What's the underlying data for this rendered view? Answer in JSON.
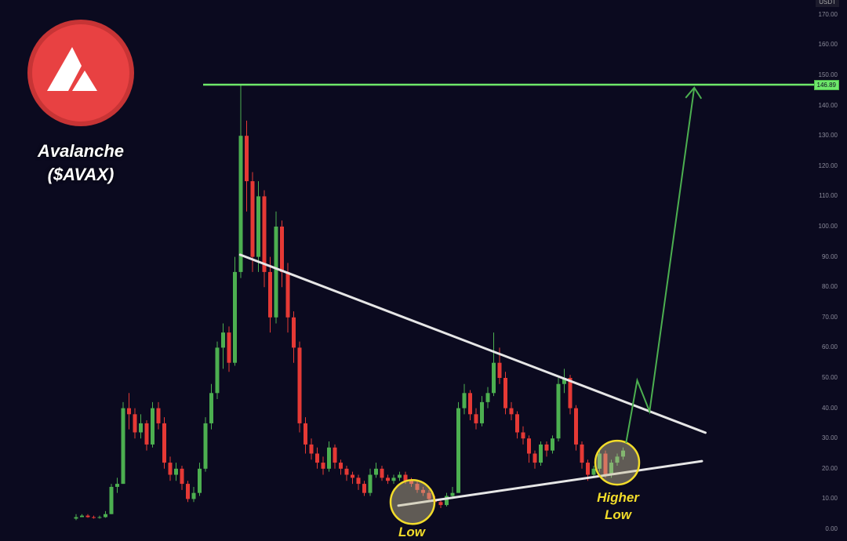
{
  "brand": {
    "name": "Avalanche",
    "ticker": "($AVAX)",
    "logo_color": "#e84142",
    "logo_icon": "avalanche-logo"
  },
  "chart_data": {
    "type": "candlestick",
    "currency_label": "USDT",
    "ylim": [
      0,
      170
    ],
    "yticks": [
      "0.00",
      "10.00",
      "20.00",
      "30.00",
      "40.00",
      "50.00",
      "60.00",
      "70.00",
      "80.00",
      "90.00",
      "100.00",
      "110.00",
      "120.00",
      "130.00",
      "140.00",
      "150.00",
      "160.00",
      "170.00"
    ],
    "up_color": "#4caf50",
    "down_color": "#e53935",
    "ohlc": [
      [
        3.5,
        5,
        3,
        4
      ],
      [
        4,
        5,
        4,
        4.5
      ],
      [
        4.5,
        5,
        3.8,
        4
      ],
      [
        4,
        4.5,
        3.5,
        3.8
      ],
      [
        3.8,
        4.5,
        3.5,
        4
      ],
      [
        4,
        6,
        3.8,
        5
      ],
      [
        5,
        15,
        5,
        14
      ],
      [
        14,
        17,
        12,
        15
      ],
      [
        15,
        42,
        15,
        40
      ],
      [
        40,
        45,
        33,
        38
      ],
      [
        38,
        40,
        30,
        32
      ],
      [
        32,
        38,
        30,
        35
      ],
      [
        35,
        36,
        26,
        28
      ],
      [
        28,
        42,
        27,
        40
      ],
      [
        40,
        42,
        33,
        35
      ],
      [
        35,
        37,
        20,
        22
      ],
      [
        22,
        24,
        16,
        18
      ],
      [
        18,
        22,
        16,
        20
      ],
      [
        20,
        21,
        13,
        15
      ],
      [
        15,
        16,
        9,
        10
      ],
      [
        10,
        14,
        9,
        12
      ],
      [
        12,
        22,
        11,
        20
      ],
      [
        20,
        37,
        19,
        35
      ],
      [
        35,
        48,
        33,
        45
      ],
      [
        45,
        62,
        43,
        60
      ],
      [
        60,
        68,
        53,
        65
      ],
      [
        65,
        67,
        52,
        55
      ],
      [
        55,
        90,
        54,
        85
      ],
      [
        85,
        146.89,
        83,
        130
      ],
      [
        130,
        135,
        105,
        115
      ],
      [
        115,
        118,
        85,
        90
      ],
      [
        90,
        115,
        85,
        110
      ],
      [
        110,
        112,
        80,
        85
      ],
      [
        85,
        90,
        65,
        70
      ],
      [
        70,
        105,
        68,
        100
      ],
      [
        100,
        102,
        80,
        85
      ],
      [
        85,
        88,
        65,
        70
      ],
      [
        70,
        72,
        55,
        60
      ],
      [
        60,
        62,
        32,
        35
      ],
      [
        35,
        37,
        25,
        28
      ],
      [
        28,
        30,
        23,
        25
      ],
      [
        25,
        27,
        20,
        22
      ],
      [
        22,
        24,
        18,
        20
      ],
      [
        20,
        29,
        19,
        27
      ],
      [
        27,
        28,
        20,
        22
      ],
      [
        22,
        23,
        18,
        20
      ],
      [
        20,
        21,
        16,
        18
      ],
      [
        18,
        19,
        15,
        17
      ],
      [
        17,
        18,
        13,
        15
      ],
      [
        15,
        16,
        11,
        12
      ],
      [
        12,
        20,
        11,
        18
      ],
      [
        18,
        22,
        17,
        20
      ],
      [
        20,
        21,
        16,
        17
      ],
      [
        17,
        18,
        15,
        16
      ],
      [
        16,
        18,
        15,
        17
      ],
      [
        17,
        19,
        16,
        18
      ],
      [
        18,
        19,
        15,
        16
      ],
      [
        16,
        17,
        14,
        15
      ],
      [
        15,
        16,
        12,
        13
      ],
      [
        13,
        14,
        11,
        12
      ],
      [
        12,
        13,
        9,
        10
      ],
      [
        10,
        11,
        8,
        9
      ],
      [
        9,
        10,
        7,
        8
      ],
      [
        8,
        12,
        7.5,
        11
      ],
      [
        11,
        14,
        10,
        12
      ],
      [
        12,
        42,
        12,
        40
      ],
      [
        40,
        48,
        38,
        45
      ],
      [
        45,
        46,
        36,
        38
      ],
      [
        38,
        40,
        33,
        35
      ],
      [
        35,
        44,
        34,
        42
      ],
      [
        42,
        47,
        40,
        45
      ],
      [
        45,
        65,
        44,
        55
      ],
      [
        55,
        60,
        48,
        50
      ],
      [
        50,
        52,
        38,
        40
      ],
      [
        40,
        42,
        36,
        38
      ],
      [
        38,
        39,
        30,
        32
      ],
      [
        32,
        34,
        28,
        30
      ],
      [
        30,
        31,
        22,
        25
      ],
      [
        25,
        26,
        20,
        22
      ],
      [
        22,
        29,
        21,
        28
      ],
      [
        28,
        29,
        24,
        26
      ],
      [
        26,
        31,
        25,
        30
      ],
      [
        30,
        50,
        29,
        48
      ],
      [
        48,
        53,
        45,
        50
      ],
      [
        50,
        51,
        38,
        40
      ],
      [
        40,
        41,
        26,
        28
      ],
      [
        28,
        29,
        20,
        22
      ],
      [
        22,
        23,
        16,
        18
      ],
      [
        18,
        21,
        17,
        20
      ],
      [
        20,
        26,
        19,
        25
      ],
      [
        25,
        26,
        17,
        18
      ],
      [
        18,
        23,
        17,
        22
      ],
      [
        22,
        25,
        21,
        24
      ],
      [
        24,
        27,
        23,
        26
      ]
    ],
    "ath_level": {
      "value": 146.89,
      "label": "146.89",
      "color": "#6ee86a",
      "from_index": 21.6
    },
    "resistance_line": {
      "points": [
        [
          27.9,
          90.7
        ],
        [
          107,
          31.9
        ]
      ],
      "color": "#e6e6e6"
    },
    "support_line": {
      "points": [
        [
          54.8,
          7.8
        ],
        [
          106.4,
          22.5
        ]
      ],
      "color": "#e6e6e6"
    },
    "projection_arrow": {
      "points": [
        [
          93.5,
          28.5
        ],
        [
          95.4,
          49.2
        ],
        [
          97.5,
          38.9
        ],
        [
          105.1,
          145.9
        ]
      ],
      "color": "#4caf50"
    },
    "annotations": [
      {
        "label": "Low",
        "center": [
          57.2,
          9
        ],
        "color": "#f2dc2a"
      },
      {
        "label": "Higher Low",
        "center": [
          92,
          22
        ],
        "color": "#f2dc2a"
      }
    ]
  }
}
